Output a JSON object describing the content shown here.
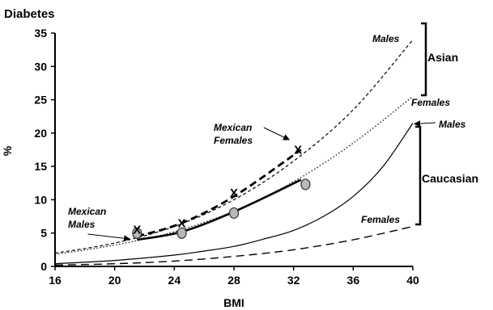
{
  "chart_data": {
    "type": "line",
    "title": "Diabetes",
    "xlabel": "BMI",
    "ylabel": "%",
    "xlim": [
      16,
      40
    ],
    "ylim": [
      0,
      35
    ],
    "x_ticks": [
      "16",
      "20",
      "24",
      "28",
      "32",
      "36",
      "40"
    ],
    "y_ticks": [
      "0",
      "5",
      "10",
      "15",
      "20",
      "25",
      "30",
      "35"
    ],
    "grid": false,
    "curves": [
      {
        "key": "asian_males",
        "style": "short-dash",
        "x": [
          16,
          20,
          24,
          28,
          32,
          36,
          40
        ],
        "y": [
          2.0,
          3.5,
          6.0,
          10.0,
          15.8,
          23.5,
          34.0
        ]
      },
      {
        "key": "asian_females",
        "style": "dotted",
        "x": [
          16,
          20,
          24,
          28,
          32,
          36,
          40
        ],
        "y": [
          1.8,
          3.2,
          5.2,
          8.3,
          12.7,
          18.5,
          25.5
        ]
      },
      {
        "key": "caucasian_males",
        "style": "solid-thin",
        "x": [
          16,
          20,
          24,
          26,
          28,
          30,
          32,
          34,
          36,
          38,
          40
        ],
        "y": [
          0.4,
          0.9,
          1.7,
          2.3,
          3.0,
          4.1,
          5.4,
          7.5,
          10.5,
          15.0,
          21.5
        ]
      },
      {
        "key": "caucasian_females",
        "style": "long-dash",
        "x": [
          16,
          20,
          24,
          28,
          32,
          36,
          40
        ],
        "y": [
          0.2,
          0.4,
          0.8,
          1.5,
          2.5,
          4.0,
          6.0
        ]
      },
      {
        "key": "mexican_males",
        "style": "solid-thick",
        "x": [
          21.5,
          24.5,
          28,
          32.5
        ],
        "y": [
          4.0,
          5.2,
          8.2,
          13.0
        ]
      },
      {
        "key": "mexican_females",
        "style": "dash-thick",
        "x": [
          21.5,
          24.5,
          28,
          32.5
        ],
        "y": [
          4.5,
          6.5,
          10.5,
          17.5
        ]
      }
    ],
    "mexican_males_points": {
      "x": [
        21.5,
        24.5,
        28,
        32.8
      ],
      "y": [
        5.0,
        5.0,
        8.0,
        12.3
      ]
    },
    "mexican_females_points": {
      "x": [
        21.5,
        24.5,
        28,
        32.3
      ],
      "y": [
        5.5,
        6.5,
        11.0,
        17.5
      ],
      "marker": "X"
    },
    "annotations": {
      "males_top": "Males",
      "females_mid": "Females",
      "males_mid": "Males",
      "females_low": "Females",
      "mexican_females_1": "Mexican",
      "mexican_females_2": "Females",
      "mexican_males_1": "Mexican",
      "mexican_males_2": "Males"
    },
    "groups": {
      "asian": "Asian",
      "caucasian": "Caucasian"
    }
  }
}
